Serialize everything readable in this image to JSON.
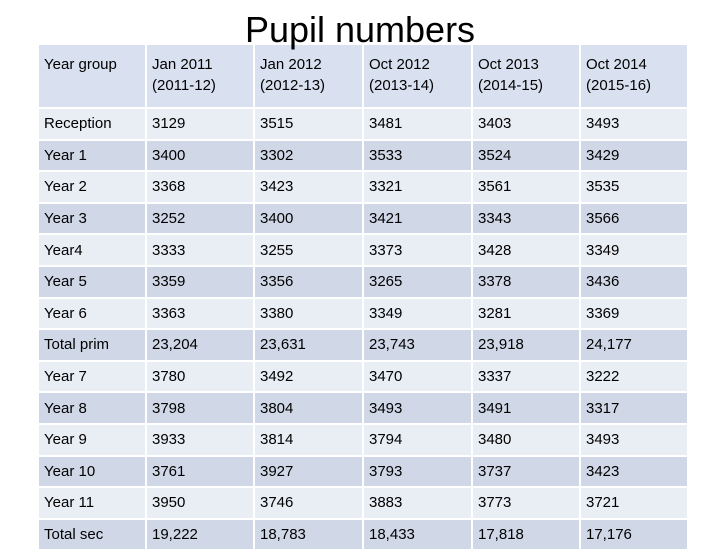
{
  "title": "Pupil numbers",
  "table": {
    "headers": [
      [
        "Year group",
        ""
      ],
      [
        "Jan 2011",
        "(2011-12)"
      ],
      [
        "Jan 2012",
        "(2012-13)"
      ],
      [
        "Oct 2012",
        "(2013-14)"
      ],
      [
        "Oct 2013",
        "(2014-15)"
      ],
      [
        "Oct 2014",
        "(2015-16)"
      ]
    ],
    "rows": [
      [
        "Reception",
        "3129",
        "3515",
        "3481",
        "3403",
        "3493"
      ],
      [
        "Year 1",
        "3400",
        "3302",
        "3533",
        "3524",
        "3429"
      ],
      [
        "Year 2",
        "3368",
        "3423",
        "3321",
        "3561",
        "3535"
      ],
      [
        "Year 3",
        "3252",
        "3400",
        "3421",
        "3343",
        "3566"
      ],
      [
        "Year4",
        "3333",
        "3255",
        "3373",
        "3428",
        "3349"
      ],
      [
        "Year 5",
        "3359",
        "3356",
        "3265",
        "3378",
        "3436"
      ],
      [
        "Year 6",
        "3363",
        "3380",
        "3349",
        "3281",
        "3369"
      ],
      [
        "Total prim",
        "23,204",
        "23,631",
        "23,743",
        "23,918",
        "24,177"
      ],
      [
        "Year 7",
        "3780",
        "3492",
        "3470",
        "3337",
        "3222"
      ],
      [
        "Year 8",
        "3798",
        "3804",
        "3493",
        "3491",
        "3317"
      ],
      [
        "Year 9",
        "3933",
        "3814",
        "3794",
        "3480",
        "3493"
      ],
      [
        "Year 10",
        "3761",
        "3927",
        "3793",
        "3737",
        "3423"
      ],
      [
        "Year 11",
        "3950",
        "3746",
        "3883",
        "3773",
        "3721"
      ],
      [
        "Total sec",
        "19,222",
        "18,783",
        "18,433",
        "17,818",
        "17,176"
      ]
    ]
  }
}
